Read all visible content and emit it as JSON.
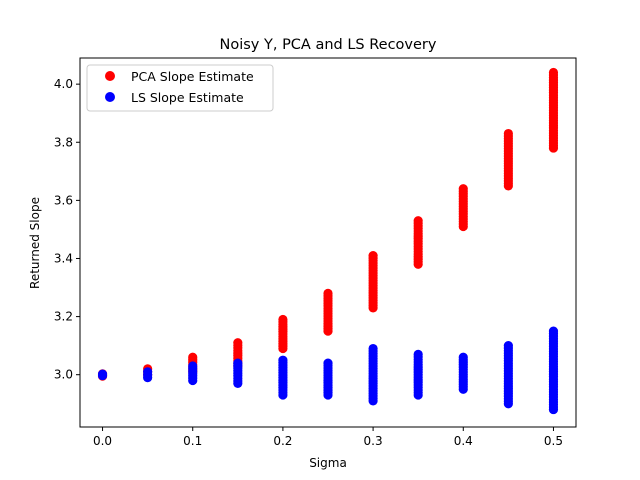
{
  "chart_data": {
    "type": "scatter",
    "title": "Noisy Y, PCA and LS Recovery",
    "xlabel": "Sigma",
    "ylabel": "Returned Slope",
    "xlim": [
      -0.025,
      0.525
    ],
    "ylim": [
      2.82,
      4.09
    ],
    "xticks": [
      "0.0",
      "0.1",
      "0.2",
      "0.3",
      "0.4",
      "0.5"
    ],
    "yticks": [
      "3.0",
      "3.2",
      "3.4",
      "3.6",
      "3.8",
      "4.0"
    ],
    "grid": false,
    "legend_position": "top-left",
    "series": [
      {
        "name": "PCA Slope Estimate",
        "color": "#ff0000",
        "points": [
          {
            "x": 0.0,
            "ymin": 2.995,
            "ymax": 3.003
          },
          {
            "x": 0.05,
            "ymin": 3.0,
            "ymax": 3.02
          },
          {
            "x": 0.1,
            "ymin": 3.01,
            "ymax": 3.06
          },
          {
            "x": 0.15,
            "ymin": 3.03,
            "ymax": 3.11
          },
          {
            "x": 0.2,
            "ymin": 3.09,
            "ymax": 3.19
          },
          {
            "x": 0.25,
            "ymin": 3.15,
            "ymax": 3.28
          },
          {
            "x": 0.3,
            "ymin": 3.23,
            "ymax": 3.41
          },
          {
            "x": 0.35,
            "ymin": 3.38,
            "ymax": 3.53
          },
          {
            "x": 0.4,
            "ymin": 3.51,
            "ymax": 3.64
          },
          {
            "x": 0.45,
            "ymin": 3.65,
            "ymax": 3.83
          },
          {
            "x": 0.5,
            "ymin": 3.78,
            "ymax": 4.04
          }
        ]
      },
      {
        "name": "LS Slope Estimate",
        "color": "#0000ff",
        "points": [
          {
            "x": 0.0,
            "ymin": 2.997,
            "ymax": 3.002
          },
          {
            "x": 0.05,
            "ymin": 2.99,
            "ymax": 3.01
          },
          {
            "x": 0.1,
            "ymin": 2.98,
            "ymax": 3.03
          },
          {
            "x": 0.15,
            "ymin": 2.97,
            "ymax": 3.04
          },
          {
            "x": 0.2,
            "ymin": 2.93,
            "ymax": 3.05
          },
          {
            "x": 0.25,
            "ymin": 2.93,
            "ymax": 3.04
          },
          {
            "x": 0.3,
            "ymin": 2.91,
            "ymax": 3.09
          },
          {
            "x": 0.35,
            "ymin": 2.93,
            "ymax": 3.07
          },
          {
            "x": 0.4,
            "ymin": 2.95,
            "ymax": 3.06
          },
          {
            "x": 0.45,
            "ymin": 2.9,
            "ymax": 3.1
          },
          {
            "x": 0.5,
            "ymin": 2.88,
            "ymax": 3.15
          }
        ]
      }
    ]
  }
}
